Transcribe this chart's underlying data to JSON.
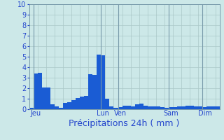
{
  "title": "",
  "xlabel": "Précipitations 24h ( mm )",
  "background_color": "#cce8e8",
  "bar_color": "#1a5cd4",
  "grid_color": "#aac8c8",
  "vline_color": "#7799aa",
  "ylim": [
    0,
    10
  ],
  "yticks": [
    0,
    1,
    2,
    3,
    4,
    5,
    6,
    7,
    8,
    9,
    10
  ],
  "day_labels": [
    "Jeu",
    "Lun",
    "Ven",
    "Sam",
    "Dim"
  ],
  "day_tick_positions": [
    1,
    17,
    21,
    33,
    41
  ],
  "vline_positions": [
    0.5,
    16.5,
    20.5,
    32.5,
    40.5
  ],
  "values": [
    0.15,
    3.4,
    3.5,
    2.05,
    2.1,
    0.5,
    0.3,
    0.15,
    0.6,
    0.65,
    0.9,
    1.05,
    1.2,
    1.25,
    3.35,
    3.3,
    5.2,
    5.15,
    1.0,
    0.3,
    0.15,
    0.2,
    0.35,
    0.35,
    0.3,
    0.5,
    0.55,
    0.35,
    0.3,
    0.3,
    0.3,
    0.2,
    0.15,
    0.2,
    0.2,
    0.3,
    0.3,
    0.35,
    0.35,
    0.3,
    0.25,
    0.2,
    0.25,
    0.3,
    0.25
  ],
  "xlabel_fontsize": 9,
  "tick_fontsize": 7,
  "label_fontsize": 7,
  "xlabel_color": "#2244cc",
  "tick_color": "#2244cc"
}
